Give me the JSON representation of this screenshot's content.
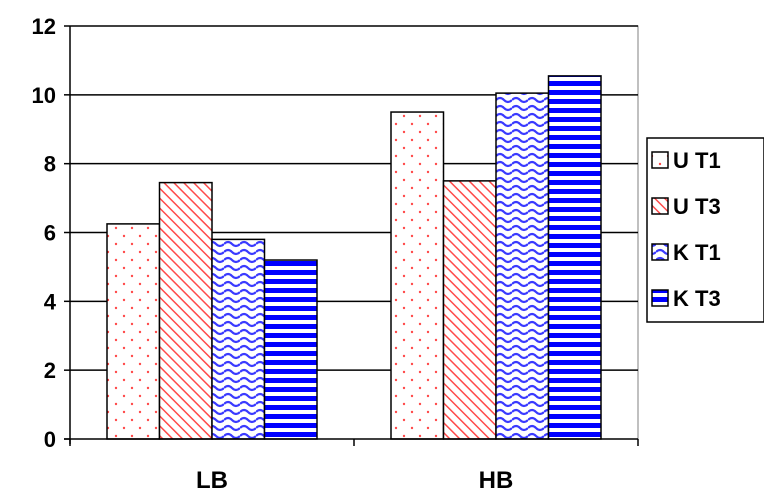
{
  "chart_data": {
    "type": "bar",
    "title": "",
    "xlabel": "",
    "ylabel": "",
    "categories": [
      "LB",
      "HB"
    ],
    "series": [
      {
        "name": "U T1",
        "values": [
          6.25,
          9.5
        ],
        "pattern": "dots",
        "color": "#ff4a4a"
      },
      {
        "name": "U T3",
        "values": [
          7.45,
          7.5
        ],
        "pattern": "diagonal",
        "color": "#ff4a4a"
      },
      {
        "name": "K T1",
        "values": [
          5.8,
          10.05
        ],
        "pattern": "wave",
        "color": "#3a3aff"
      },
      {
        "name": "K T3",
        "values": [
          5.2,
          10.55
        ],
        "pattern": "horizontal",
        "color": "#0000ff"
      }
    ],
    "ylim": [
      0,
      12
    ],
    "yticks": [
      0,
      2,
      4,
      6,
      8,
      10,
      12
    ],
    "grid": true,
    "legend": "right"
  }
}
